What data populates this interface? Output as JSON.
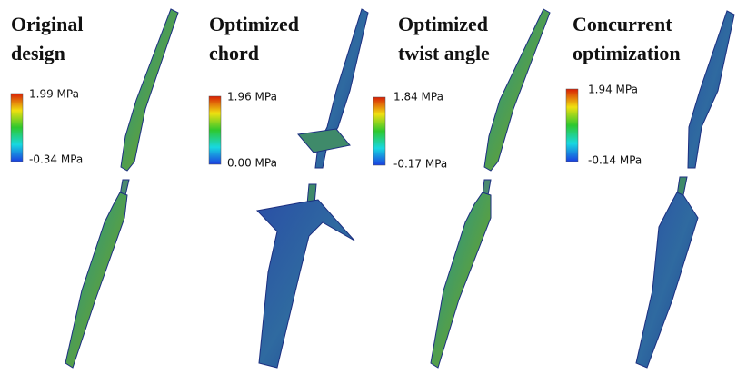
{
  "panels": [
    {
      "title": [
        "Original",
        "design"
      ],
      "colorbar": {
        "max": "1.99 MPa",
        "min": "-0.34 MPa"
      }
    },
    {
      "title": [
        "Optimized",
        "chord"
      ],
      "colorbar": {
        "max": "1.96 MPa",
        "min": "0.00 MPa"
      }
    },
    {
      "title": [
        "Optimized",
        "twist angle"
      ],
      "colorbar": {
        "max": "1.84 MPa",
        "min": "-0.17 MPa"
      }
    },
    {
      "title": [
        "Concurrent",
        "optimization"
      ],
      "colorbar": {
        "max": "1.94 MPa",
        "min": "-0.14 MPa"
      }
    }
  ]
}
